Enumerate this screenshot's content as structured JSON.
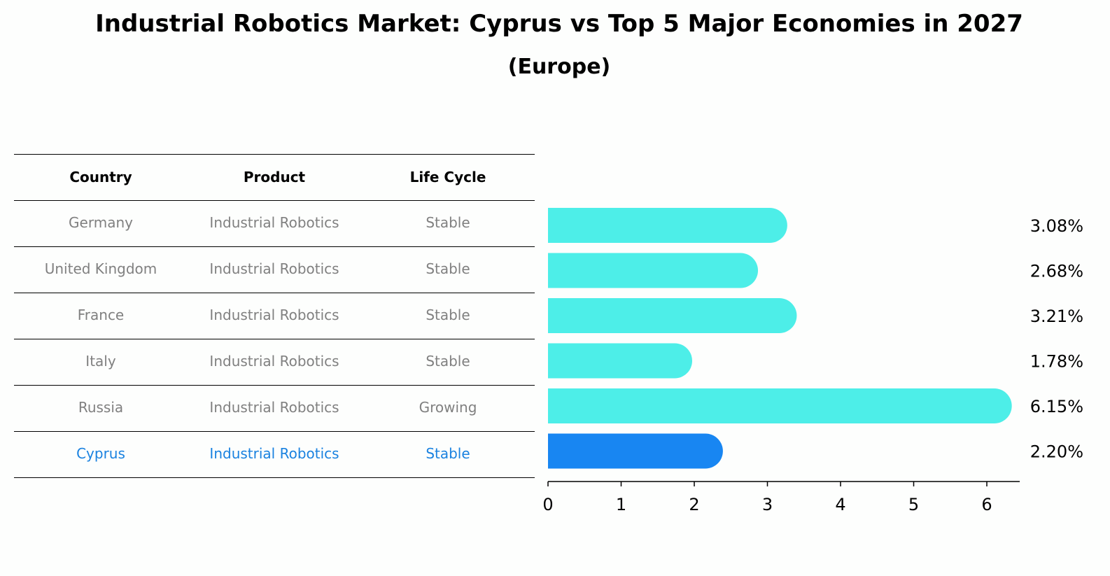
{
  "chart_data": {
    "type": "bar",
    "orientation": "horizontal",
    "title": "Industrial Robotics Market: Cyprus vs Top 5 Major Economies in 2027",
    "subtitle": "(Europe)",
    "categories": [
      "Germany",
      "United Kingdom",
      "France",
      "Italy",
      "Russia",
      "Cyprus"
    ],
    "values": [
      3.08,
      2.68,
      3.21,
      1.78,
      6.15,
      2.2
    ],
    "value_labels": [
      "3.08%",
      "2.68%",
      "3.21%",
      "1.78%",
      "6.15%",
      "2.20%"
    ],
    "xlim": [
      0,
      6.45
    ],
    "x_ticks": [
      "0",
      "1",
      "2",
      "3",
      "4",
      "5",
      "6"
    ],
    "highlight": "Cyprus",
    "colors": {
      "default": "#4deee8",
      "highlight": "#1886f2",
      "muted_text": "#808080",
      "highlight_text": "#1a82e0"
    },
    "grid": false
  },
  "table": {
    "headers": [
      "Country",
      "Product",
      "Life Cycle"
    ],
    "rows": [
      [
        "Germany",
        "Industrial Robotics",
        "Stable"
      ],
      [
        "United Kingdom",
        "Industrial Robotics",
        "Stable"
      ],
      [
        "France",
        "Industrial Robotics",
        "Stable"
      ],
      [
        "Italy",
        "Industrial Robotics",
        "Stable"
      ],
      [
        "Russia",
        "Industrial Robotics",
        "Growing"
      ],
      [
        "Cyprus",
        "Industrial Robotics",
        "Stable"
      ]
    ]
  }
}
